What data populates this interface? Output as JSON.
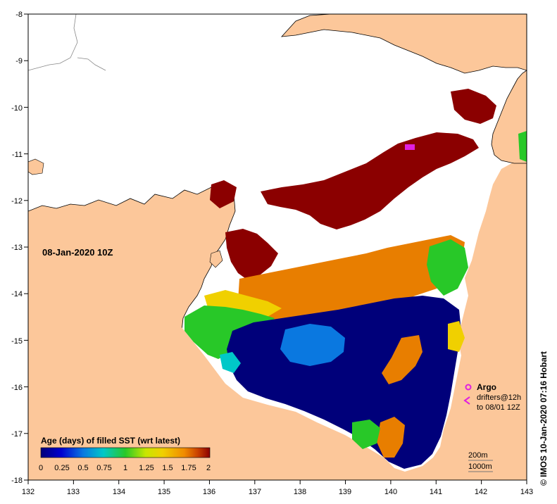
{
  "map": {
    "date_label": "08-Jan-2020 10Z",
    "credit": "© IMOS 10-Jan-2020 07:16 Hobart",
    "x_ticks": [
      "132",
      "133",
      "134",
      "135",
      "136",
      "137",
      "138",
      "139",
      "140",
      "141",
      "142",
      "143"
    ],
    "y_ticks": [
      "-8",
      "-9",
      "-10",
      "-11",
      "-12",
      "-13",
      "-14",
      "-15",
      "-16",
      "-17",
      "-18"
    ],
    "legend": {
      "title": "Age (days) of filled SST (wrt latest)",
      "ticks": [
        "0",
        "0.25",
        "0.5",
        "0.75",
        "1",
        "1.25",
        "1.5",
        "1.75",
        "2"
      ],
      "colors": [
        "#00007a",
        "#0000d0",
        "#0a78e0",
        "#00c8c8",
        "#28c828",
        "#c8e600",
        "#f0d000",
        "#f08a00",
        "#c84000",
        "#8b0000"
      ]
    },
    "argo_label": "Argo",
    "drifters_label": "drifters@12h",
    "drifters_sub": "to 08/01 12Z",
    "depth_200": "200m",
    "depth_1000": "1000m",
    "land_color": "#fcc79a"
  }
}
